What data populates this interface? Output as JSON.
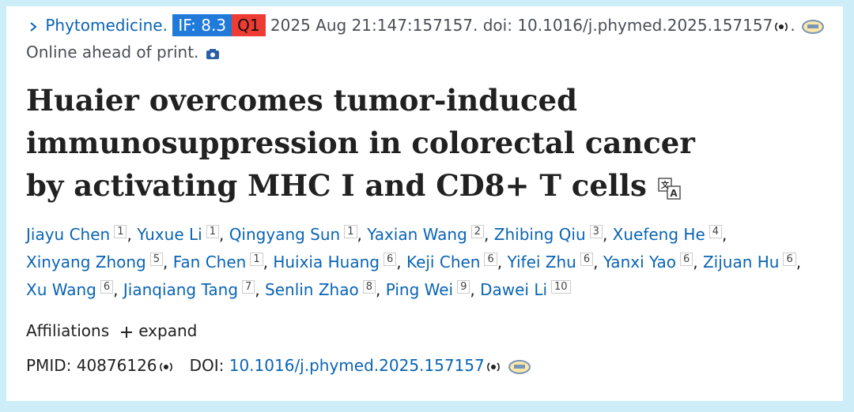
{
  "citation": {
    "journal": "Phytomedicine.",
    "if_badge": "IF: 8.3",
    "q_badge": "Q1",
    "text": "2025 Aug 21:147:157157. doi: 10.1016/j.phymed.2025.157157",
    "end": ".",
    "status": "Online ahead of print."
  },
  "title": "Huaier overcomes tumor-induced immunosuppression in colorectal cancer by activating MHC I and CD8+ T cells",
  "authors": {
    "separator": ",",
    "list": [
      {
        "name": "Jiayu Chen",
        "affil": "1"
      },
      {
        "name": "Yuxue Li",
        "affil": "1"
      },
      {
        "name": "Qingyang Sun",
        "affil": "1"
      },
      {
        "name": "Yaxian Wang",
        "affil": "2"
      },
      {
        "name": "Zhibing Qiu",
        "affil": "3"
      },
      {
        "name": "Xuefeng He",
        "affil": "4"
      },
      {
        "name": "Xinyang Zhong",
        "affil": "5"
      },
      {
        "name": "Fan Chen",
        "affil": "1"
      },
      {
        "name": "Huixia Huang",
        "affil": "6"
      },
      {
        "name": "Keji Chen",
        "affil": "6"
      },
      {
        "name": "Yifei Zhu",
        "affil": "6"
      },
      {
        "name": "Yanxi Yao",
        "affil": "6"
      },
      {
        "name": "Zijuan Hu",
        "affil": "6"
      },
      {
        "name": "Xu Wang",
        "affil": "6"
      },
      {
        "name": "Jianqiang Tang",
        "affil": "7"
      },
      {
        "name": "Senlin Zhao",
        "affil": "8"
      },
      {
        "name": "Ping Wei",
        "affil": "9"
      },
      {
        "name": "Dawei Li",
        "affil": "10"
      }
    ]
  },
  "affiliations": {
    "label": "Affiliations",
    "expand": "expand"
  },
  "ids": {
    "pmid_label": "PMID:",
    "pmid": "40876126",
    "doi_label": "DOI:",
    "doi": "10.1016/j.phymed.2025.157157"
  }
}
